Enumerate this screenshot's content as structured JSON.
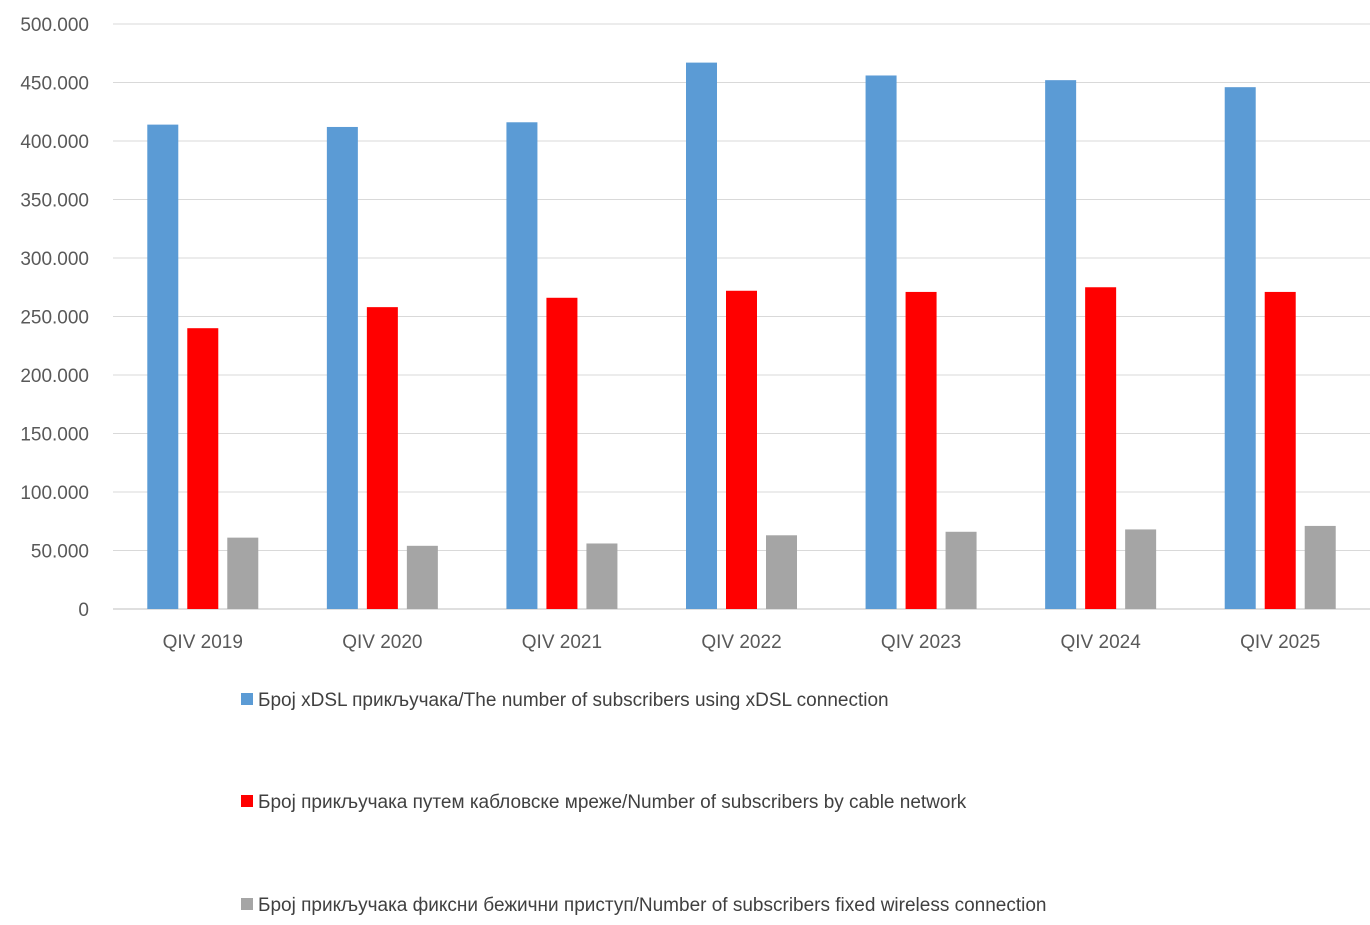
{
  "chart_data": {
    "type": "bar",
    "categories": [
      "QIV 2019",
      "QIV 2020",
      "QIV 2021",
      "QIV 2022",
      "QIV 2023",
      "QIV 2024",
      "QIV 2025"
    ],
    "series": [
      {
        "name": "Број  xDSL прикључака/The number of subscribers using  xDSL connection",
        "color": "#5B9BD5",
        "values": [
          414000,
          412000,
          416000,
          467000,
          456000,
          452000,
          446000
        ]
      },
      {
        "name": "Број прикључака путем  кабловске мреже/Number of subscribers by cable network",
        "color": "#FF0000",
        "values": [
          240000,
          258000,
          266000,
          272000,
          271000,
          275000,
          271000
        ]
      },
      {
        "name": "Број прикључака фиксни бежични приступ/Number of subscribers fixed wireless connection",
        "color": "#A5A5A5",
        "values": [
          61000,
          54000,
          56000,
          63000,
          66000,
          68000,
          71000
        ]
      }
    ],
    "ylim": [
      0,
      500000
    ],
    "yticks": [
      0,
      50000,
      100000,
      150000,
      200000,
      250000,
      300000,
      350000,
      400000,
      450000,
      500000
    ],
    "ytick_labels": [
      "0",
      "50.000",
      "100.000",
      "150.000",
      "200.000",
      "250.000",
      "300.000",
      "350.000",
      "400.000",
      "450.000",
      "500.000"
    ],
    "title": "",
    "xlabel": "",
    "ylabel": "",
    "grid": true,
    "legend_position": "bottom"
  }
}
